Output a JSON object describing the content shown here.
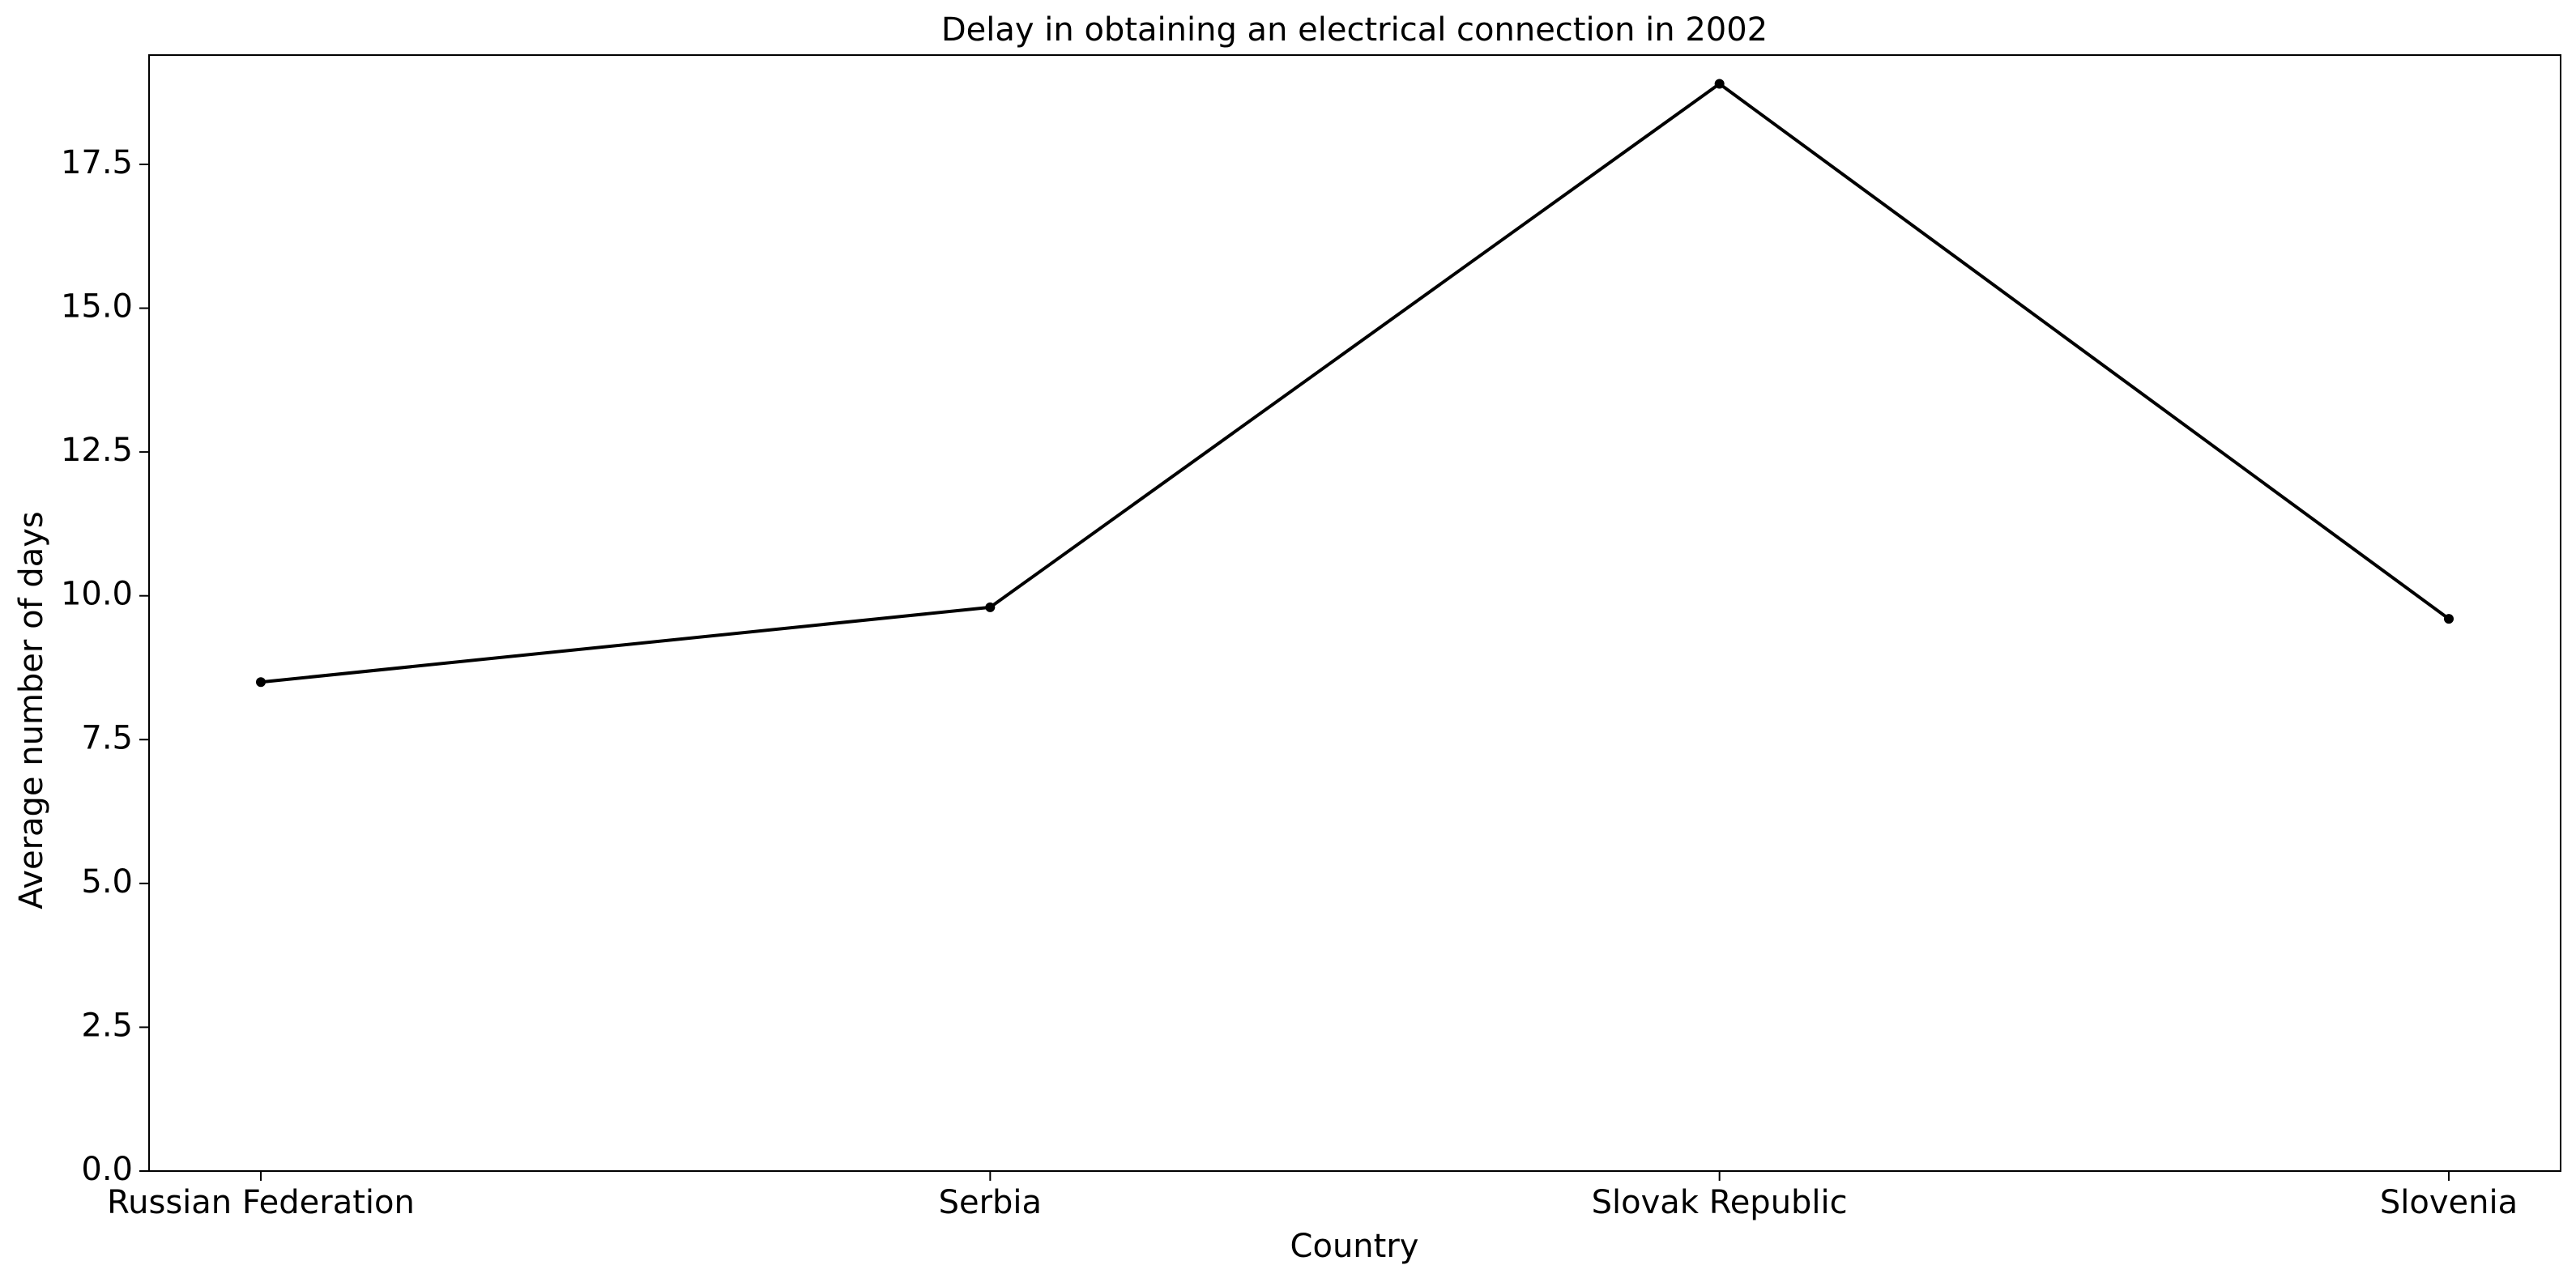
{
  "chart_data": {
    "type": "line",
    "title": "Delay in obtaining an electrical connection in 2002",
    "xlabel": "Country",
    "ylabel": "Average number of days",
    "categories": [
      "Russian Federation",
      "Serbia",
      "Slovak Republic",
      "Slovenia"
    ],
    "series": [
      {
        "values": [
          8.5,
          9.8,
          18.9,
          9.6
        ],
        "color": "#000000"
      }
    ],
    "ylim": [
      0,
      19.4
    ],
    "yticks": [
      "0.0",
      "2.5",
      "5.0",
      "7.5",
      "10.0",
      "12.5",
      "15.0",
      "17.5"
    ],
    "grid": false,
    "legend": false
  }
}
